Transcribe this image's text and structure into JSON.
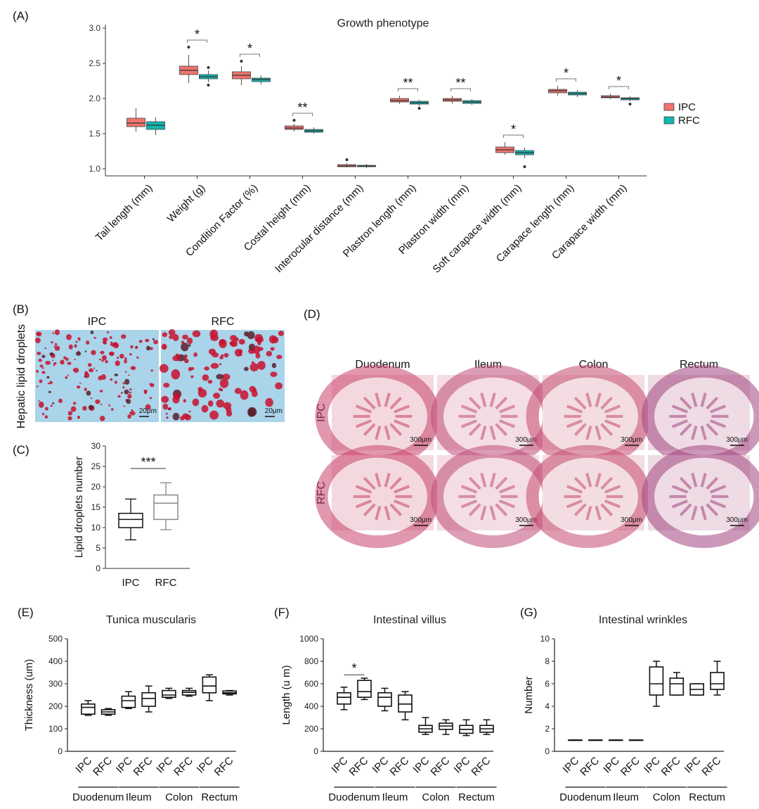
{
  "figure": {
    "panel_letters": [
      "(A)",
      "(B)",
      "(C)",
      "(D)",
      "(E)",
      "(F)",
      "(G)"
    ]
  },
  "colors": {
    "ipc": "#f0746e",
    "rfc": "#12b5b0",
    "tissue_bg": "#f1d5dc",
    "oil_bg": "#a9d4ea",
    "droplet": "#c8102e"
  },
  "chart_data": [
    {
      "id": "A",
      "type": "box",
      "title": "Growth phenotype",
      "legend": [
        "IPC",
        "RFC"
      ],
      "legend_position": "right",
      "ylim": [
        0.9,
        3.05
      ],
      "yticks": [
        1.0,
        1.5,
        2.0,
        2.5,
        3.0
      ],
      "ytick_labels": [
        "1.0",
        "1.5",
        "2.0",
        "2.5",
        "3.0"
      ],
      "categories": [
        "Tail length (mm)",
        "Weight (g)",
        "Condition Factor (%)",
        "Costal height (mm)",
        "Interocular distance (mm)",
        "Plastron length (mm)",
        "Plastron width (mm)",
        "Soft carapace width (mm)",
        "Carapace length (mm)",
        "Carapace width (mm)"
      ],
      "significance": [
        "",
        "*",
        "*",
        "**",
        "",
        "**",
        "**",
        "*",
        "*",
        "*"
      ],
      "series": [
        {
          "name": "IPC",
          "boxes": [
            {
              "min": 1.53,
              "q1": 1.6,
              "median": 1.65,
              "q3": 1.72,
              "max": 1.86,
              "outliers": []
            },
            {
              "min": 2.22,
              "q1": 2.34,
              "median": 2.4,
              "q3": 2.46,
              "max": 2.62,
              "outliers": [
                2.73
              ]
            },
            {
              "min": 2.19,
              "q1": 2.28,
              "median": 2.33,
              "q3": 2.38,
              "max": 2.46,
              "outliers": [
                2.53
              ]
            },
            {
              "min": 1.53,
              "q1": 1.56,
              "median": 1.58,
              "q3": 1.61,
              "max": 1.64,
              "outliers": [
                1.69
              ]
            },
            {
              "min": 1.02,
              "q1": 1.03,
              "median": 1.04,
              "q3": 1.06,
              "max": 1.08,
              "outliers": [
                1.13
              ]
            },
            {
              "min": 1.92,
              "q1": 1.95,
              "median": 1.97,
              "q3": 2.0,
              "max": 2.04,
              "outliers": []
            },
            {
              "min": 1.93,
              "q1": 1.96,
              "median": 1.98,
              "q3": 2.0,
              "max": 2.04,
              "outliers": []
            },
            {
              "min": 1.2,
              "q1": 1.23,
              "median": 1.27,
              "q3": 1.31,
              "max": 1.38,
              "outliers": []
            },
            {
              "min": 2.04,
              "q1": 2.08,
              "median": 2.11,
              "q3": 2.13,
              "max": 2.18,
              "outliers": []
            },
            {
              "min": 1.99,
              "q1": 2.01,
              "median": 2.02,
              "q3": 2.04,
              "max": 2.07,
              "outliers": []
            }
          ]
        },
        {
          "name": "RFC",
          "boxes": [
            {
              "min": 1.48,
              "q1": 1.56,
              "median": 1.62,
              "q3": 1.67,
              "max": 1.73,
              "outliers": []
            },
            {
              "min": 2.23,
              "q1": 2.28,
              "median": 2.31,
              "q3": 2.34,
              "max": 2.4,
              "outliers": [
                2.19,
                2.44
              ]
            },
            {
              "min": 2.2,
              "q1": 2.24,
              "median": 2.27,
              "q3": 2.29,
              "max": 2.33,
              "outliers": []
            },
            {
              "min": 1.5,
              "q1": 1.52,
              "median": 1.54,
              "q3": 1.56,
              "max": 1.59,
              "outliers": []
            },
            {
              "min": 1.01,
              "q1": 1.03,
              "median": 1.04,
              "q3": 1.05,
              "max": 1.07,
              "outliers": []
            },
            {
              "min": 1.89,
              "q1": 1.92,
              "median": 1.94,
              "q3": 1.96,
              "max": 1.98,
              "outliers": [
                1.86
              ]
            },
            {
              "min": 1.91,
              "q1": 1.93,
              "median": 1.95,
              "q3": 1.97,
              "max": 1.99,
              "outliers": []
            },
            {
              "min": 1.15,
              "q1": 1.2,
              "median": 1.23,
              "q3": 1.26,
              "max": 1.3,
              "outliers": [
                1.03
              ]
            },
            {
              "min": 2.02,
              "q1": 2.05,
              "median": 2.07,
              "q3": 2.09,
              "max": 2.12,
              "outliers": []
            },
            {
              "min": 1.96,
              "q1": 1.98,
              "median": 2.0,
              "q3": 2.01,
              "max": 2.03,
              "outliers": [
                1.92
              ]
            }
          ]
        }
      ]
    },
    {
      "id": "C",
      "type": "box",
      "ylabel": "Lipid droplets number",
      "ylim": [
        0,
        30
      ],
      "yticks": [
        0,
        5,
        10,
        15,
        20,
        25,
        30
      ],
      "ytick_labels": [
        "0",
        "5",
        "10",
        "15",
        "20",
        "25",
        "30"
      ],
      "categories": [
        "IPC",
        "RFC"
      ],
      "significance": "***",
      "boxes": [
        {
          "min": 7,
          "q1": 10,
          "median": 12,
          "q3": 13.5,
          "max": 17,
          "color": "#111111"
        },
        {
          "min": 9.5,
          "q1": 12,
          "median": 16,
          "q3": 18,
          "max": 21,
          "color": "#888888"
        }
      ]
    },
    {
      "id": "E",
      "type": "box",
      "title": "Tunica muscularis",
      "ylabel": "Thickness (um)",
      "ylim": [
        0,
        500
      ],
      "yticks": [
        0,
        100,
        200,
        300,
        400,
        500
      ],
      "ytick_labels": [
        "0",
        "100",
        "200",
        "300",
        "400",
        "500"
      ],
      "categories": [
        "IPC",
        "RFC",
        "IPC",
        "RFC",
        "IPC",
        "RFC",
        "IPC",
        "RFC"
      ],
      "groups": [
        "Duodenum",
        "Ileum",
        "Colon",
        "Rectum"
      ],
      "boxes": [
        {
          "min": 160,
          "q1": 165,
          "median": 195,
          "q3": 210,
          "max": 225
        },
        {
          "min": 160,
          "q1": 165,
          "median": 175,
          "q3": 185,
          "max": 190
        },
        {
          "min": 190,
          "q1": 195,
          "median": 225,
          "q3": 245,
          "max": 265
        },
        {
          "min": 175,
          "q1": 200,
          "median": 235,
          "q3": 260,
          "max": 290
        },
        {
          "min": 235,
          "q1": 240,
          "median": 250,
          "q3": 270,
          "max": 280
        },
        {
          "min": 245,
          "q1": 250,
          "median": 262,
          "q3": 270,
          "max": 280
        },
        {
          "min": 225,
          "q1": 260,
          "median": 290,
          "q3": 330,
          "max": 340
        },
        {
          "min": 250,
          "q1": 255,
          "median": 260,
          "q3": 268,
          "max": 270
        }
      ]
    },
    {
      "id": "F",
      "type": "box",
      "title": "Intestinal villus",
      "ylabel": "Length (u m)",
      "ylim": [
        0,
        1000
      ],
      "yticks": [
        0,
        200,
        400,
        600,
        800,
        1000
      ],
      "ytick_labels": [
        "0",
        "200",
        "400",
        "600",
        "800",
        "1000"
      ],
      "categories": [
        "IPC",
        "RFC",
        "IPC",
        "RFC",
        "IPC",
        "RFC",
        "IPC",
        "RFC"
      ],
      "groups": [
        "Duodenum",
        "Ileum",
        "Colon",
        "Rectum"
      ],
      "significance": "*",
      "boxes": [
        {
          "min": 370,
          "q1": 420,
          "median": 480,
          "q3": 520,
          "max": 570
        },
        {
          "min": 460,
          "q1": 480,
          "median": 530,
          "q3": 630,
          "max": 650
        },
        {
          "min": 360,
          "q1": 400,
          "median": 480,
          "q3": 520,
          "max": 560
        },
        {
          "min": 280,
          "q1": 350,
          "median": 420,
          "q3": 500,
          "max": 530
        },
        {
          "min": 150,
          "q1": 170,
          "median": 200,
          "q3": 230,
          "max": 300
        },
        {
          "min": 150,
          "q1": 195,
          "median": 225,
          "q3": 250,
          "max": 280
        },
        {
          "min": 140,
          "q1": 160,
          "median": 195,
          "q3": 230,
          "max": 280
        },
        {
          "min": 150,
          "q1": 170,
          "median": 200,
          "q3": 230,
          "max": 280
        }
      ]
    },
    {
      "id": "G",
      "type": "box",
      "title": "Intestinal wrinkles",
      "ylabel": "Number",
      "ylim": [
        0,
        10
      ],
      "yticks": [
        0,
        2,
        4,
        6,
        8,
        10
      ],
      "ytick_labels": [
        "0",
        "2",
        "4",
        "6",
        "8",
        "10"
      ],
      "categories": [
        "IPC",
        "RFC",
        "IPC",
        "RFC",
        "IPC",
        "RFC",
        "IPC",
        "RFC"
      ],
      "groups": [
        "Duodenum",
        "Ileum",
        "Colon",
        "Rectum"
      ],
      "boxes": [
        {
          "min": 1,
          "q1": 1,
          "median": 1,
          "q3": 1,
          "max": 1
        },
        {
          "min": 1,
          "q1": 1,
          "median": 1,
          "q3": 1,
          "max": 1
        },
        {
          "min": 1,
          "q1": 1,
          "median": 1,
          "q3": 1,
          "max": 1
        },
        {
          "min": 1,
          "q1": 1,
          "median": 1,
          "q3": 1,
          "max": 1
        },
        {
          "min": 4,
          "q1": 5,
          "median": 6,
          "q3": 7.5,
          "max": 8
        },
        {
          "min": 5,
          "q1": 5,
          "median": 6,
          "q3": 6.5,
          "max": 7
        },
        {
          "min": 5,
          "q1": 5,
          "median": 5.5,
          "q3": 6,
          "max": 6
        },
        {
          "min": 5,
          "q1": 5.5,
          "median": 6,
          "q3": 7,
          "max": 8
        }
      ]
    }
  ],
  "panel_b": {
    "side_label": "Hepatic lipid droplets",
    "columns": [
      "IPC",
      "RFC"
    ],
    "scale_bar": "20μm"
  },
  "panel_d": {
    "columns": [
      "Duodenum",
      "Ileum",
      "Colon",
      "Rectum"
    ],
    "rows": [
      "IPC",
      "RFC"
    ],
    "scale_bar": "300μm"
  }
}
